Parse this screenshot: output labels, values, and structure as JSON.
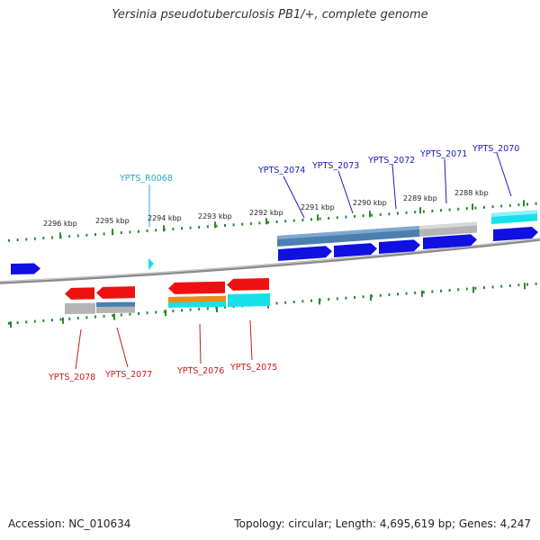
{
  "title": "Yersinia pseudotuberculosis PB1/+, complete genome",
  "footer": {
    "accession": "Accession: NC_010634",
    "summary": "Topology: circular; Length: 4,695,619 bp; Genes: 4,247"
  },
  "colors": {
    "backbone": "#8a8a8a",
    "tick": "#2a8a2a",
    "label_blue": "#1a1ab8",
    "label_red": "#cc1a1a",
    "label_cyan": "#2aa8cc",
    "gene_blue": "#1010e0",
    "gene_red": "#ee1111",
    "gene_cyan": "#18e0e8",
    "gene_orange": "#f08a10",
    "gene_gray": "#b4b4b4",
    "gene_steel": "#4a7fb0"
  },
  "scale_labels": [
    "2296 kbp",
    "2295 kbp",
    "2294 kbp",
    "2293 kbp",
    "2292 kbp",
    "2291 kbp",
    "2290 kbp",
    "2289 kbp",
    "2288 kbp"
  ],
  "gene_labels_top": [
    "YPTS_R0068",
    "YPTS_2074",
    "YPTS_2073",
    "YPTS_2072",
    "YPTS_2071",
    "YPTS_2070"
  ],
  "gene_labels_bottom": [
    "YPTS_2078",
    "YPTS_2077",
    "YPTS_2076",
    "YPTS_2075"
  ]
}
